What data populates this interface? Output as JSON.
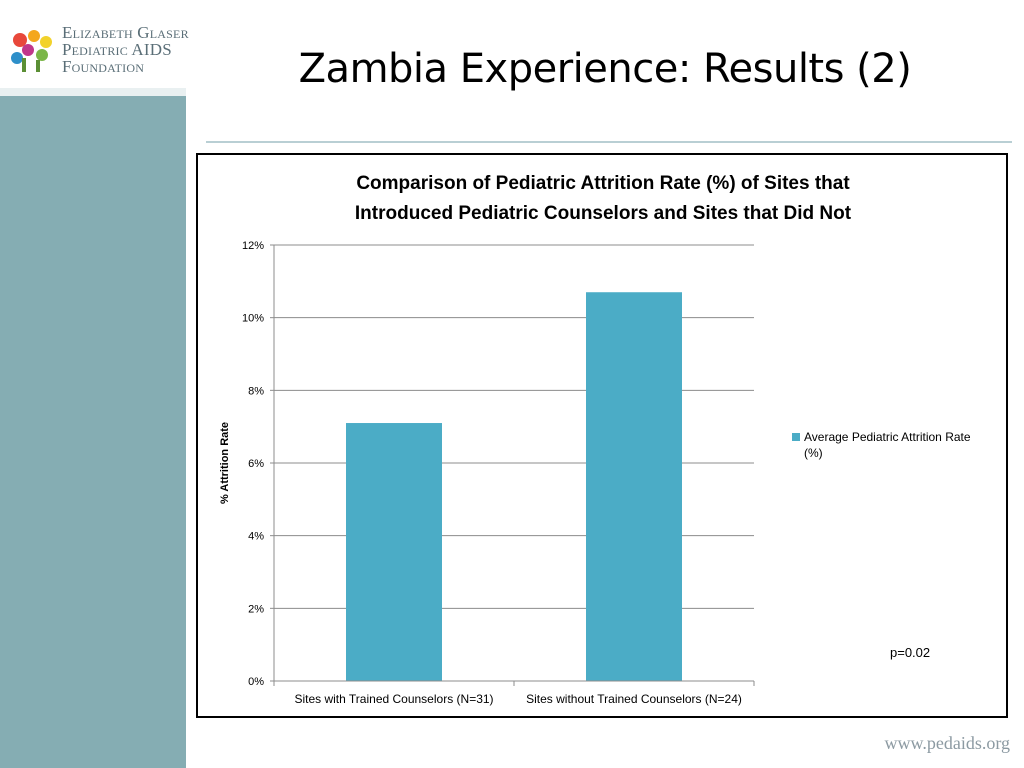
{
  "slide": {
    "title": "Zambia Experience: Results (2)",
    "footer_url": "www.pedaids.org"
  },
  "logo": {
    "line1": "Elizabeth Glaser",
    "line2": "Pediatric AIDS",
    "line3": "Foundation"
  },
  "chart_data": {
    "type": "bar",
    "title_lines": [
      "Comparison of Pediatric Attrition Rate (%) of Sites that",
      "Introduced Pediatric Counselors and Sites that Did Not"
    ],
    "categories": [
      "Sites with Trained Counselors (N=31)",
      "Sites without Trained Counselors (N=24)"
    ],
    "series": [
      {
        "name": "Average Pediatric Attrition Rate (%)",
        "values": [
          7.1,
          10.7
        ]
      }
    ],
    "xlabel": "",
    "ylabel": "% Attrition Rate",
    "ylim": [
      0,
      12
    ],
    "yticks": [
      0,
      2,
      4,
      6,
      8,
      10,
      12
    ],
    "ytick_labels": [
      "0%",
      "2%",
      "4%",
      "6%",
      "8%",
      "10%",
      "12%"
    ],
    "grid": true,
    "legend_position": "right",
    "annotation": "p=0.02",
    "bar_color": "#4bacc6"
  }
}
